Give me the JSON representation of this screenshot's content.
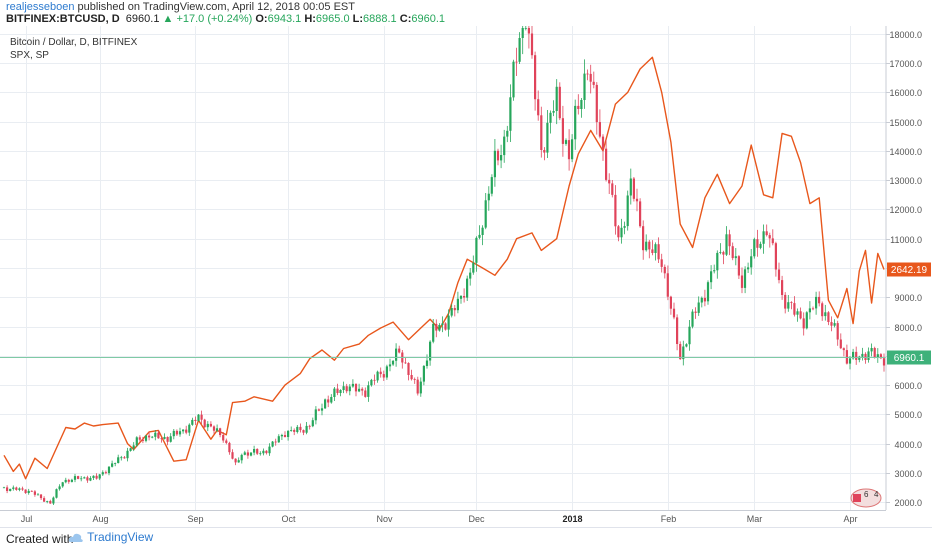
{
  "header": {
    "author": "realjesseboen",
    "published": " published on TradingView.com, April 12, 2018 00:05 EST",
    "symbol": "BITFINEX:BTCUSD, D",
    "last": "6960.1",
    "change": "▲ +17.0 (+0.24%)",
    "o_label": "O:",
    "o_val": "6943.1",
    "h_label": "H:",
    "h_val": "6965.0",
    "l_label": "L:",
    "l_val": "6888.1",
    "c_label": "C:",
    "c_val": "6960.1"
  },
  "legend": {
    "main": "Bitcoin / Dollar, D, BITFINEX",
    "compare": "SPX, SP"
  },
  "footer": {
    "made": "Created with",
    "brand": "TradingView"
  },
  "colors": {
    "up": "#26a65b",
    "down": "#e0435a",
    "spx": "#e8571c",
    "grid": "#e9edf2",
    "axis": "#555555"
  },
  "badge": {
    "left": "6",
    "right": "4"
  },
  "chart_data": {
    "type": "candlestick",
    "ylim": [
      1800,
      18200
    ],
    "y_ticks": [
      2000,
      3000,
      4000,
      5000,
      6000,
      7000,
      8000,
      9000,
      10000,
      11000,
      12000,
      13000,
      14000,
      15000,
      16000,
      17000,
      18000
    ],
    "y_tick_labels": [
      "2000.0",
      "3000.0",
      "4000.0",
      "5000.0",
      "6000.0",
      "7000.0",
      "8000.0",
      "9000.0",
      "10000.0",
      "11000.0",
      "12000.0",
      "13000.0",
      "14000.0",
      "15000.0",
      "16000.0",
      "17000.0",
      "18000.0"
    ],
    "x_range": [
      "2017-07-01",
      "2018-04-12"
    ],
    "x_ticks": [
      {
        "date": "2017-07-08",
        "label": "Jul"
      },
      {
        "date": "2017-08-01",
        "label": "Aug"
      },
      {
        "date": "2017-09-01",
        "label": "Sep"
      },
      {
        "date": "2017-10-01",
        "label": "Oct"
      },
      {
        "date": "2017-11-01",
        "label": "Nov"
      },
      {
        "date": "2017-12-01",
        "label": "Dec"
      },
      {
        "date": "2018-01-01",
        "label": "2018"
      },
      {
        "date": "2018-02-01",
        "label": "Feb"
      },
      {
        "date": "2018-03-01",
        "label": "Mar"
      },
      {
        "date": "2018-04-01",
        "label": "Apr"
      }
    ],
    "grid": true,
    "last_price": 6960.1,
    "last_price_label": "6960.1",
    "compare_last_label": "2642.19",
    "compare_label_level": 9950,
    "series": [
      {
        "name": "Bitcoin / Dollar",
        "type": "candlestick",
        "close_path": [
          [
            "2017-07-01",
            2500
          ],
          [
            "2017-07-10",
            2350
          ],
          [
            "2017-07-16",
            1950
          ],
          [
            "2017-07-20",
            2750
          ],
          [
            "2017-07-31",
            2850
          ],
          [
            "2017-08-05",
            3250
          ],
          [
            "2017-08-13",
            4050
          ],
          [
            "2017-08-17",
            4300
          ],
          [
            "2017-08-23",
            4150
          ],
          [
            "2017-08-31",
            4700
          ],
          [
            "2017-09-02",
            4850
          ],
          [
            "2017-09-06",
            4600
          ],
          [
            "2017-09-10",
            4200
          ],
          [
            "2017-09-14",
            3250
          ],
          [
            "2017-09-16",
            3700
          ],
          [
            "2017-09-22",
            3650
          ],
          [
            "2017-09-30",
            4350
          ],
          [
            "2017-10-08",
            4600
          ],
          [
            "2017-10-13",
            5500
          ],
          [
            "2017-10-20",
            5950
          ],
          [
            "2017-10-26",
            5800
          ],
          [
            "2017-10-31",
            6400
          ],
          [
            "2017-11-06",
            7100
          ],
          [
            "2017-11-12",
            5800
          ],
          [
            "2017-11-17",
            7800
          ],
          [
            "2017-11-25",
            8700
          ],
          [
            "2017-11-29",
            9850
          ],
          [
            "2017-12-07",
            13500
          ],
          [
            "2017-12-10",
            14500
          ],
          [
            "2017-12-17",
            19000
          ],
          [
            "2017-12-22",
            14000
          ],
          [
            "2017-12-27",
            15800
          ],
          [
            "2017-12-31",
            13800
          ],
          [
            "2018-01-06",
            17100
          ],
          [
            "2018-01-10",
            14500
          ],
          [
            "2018-01-16",
            11000
          ],
          [
            "2018-01-20",
            12800
          ],
          [
            "2018-01-24",
            11000
          ],
          [
            "2018-01-30",
            10200
          ],
          [
            "2018-02-05",
            7000
          ],
          [
            "2018-02-10",
            8500
          ],
          [
            "2018-02-20",
            11000
          ],
          [
            "2018-02-25",
            9600
          ],
          [
            "2018-03-05",
            11500
          ],
          [
            "2018-03-10",
            9000
          ],
          [
            "2018-03-17",
            8200
          ],
          [
            "2018-03-22",
            8900
          ],
          [
            "2018-03-27",
            7800
          ],
          [
            "2018-03-31",
            6900
          ],
          [
            "2018-04-04",
            7000
          ],
          [
            "2018-04-08",
            7050
          ],
          [
            "2018-04-12",
            6960
          ]
        ]
      },
      {
        "name": "SPX",
        "type": "line",
        "path": [
          [
            "2017-07-01",
            3600
          ],
          [
            "2017-07-04",
            3050
          ],
          [
            "2017-07-06",
            3300
          ],
          [
            "2017-07-08",
            2800
          ],
          [
            "2017-07-11",
            3500
          ],
          [
            "2017-07-15",
            3150
          ],
          [
            "2017-07-21",
            4550
          ],
          [
            "2017-07-24",
            4500
          ],
          [
            "2017-07-27",
            4700
          ],
          [
            "2017-07-30",
            4600
          ],
          [
            "2017-08-02",
            4650
          ],
          [
            "2017-08-07",
            4700
          ],
          [
            "2017-08-10",
            4000
          ],
          [
            "2017-08-12",
            3800
          ],
          [
            "2017-08-17",
            4400
          ],
          [
            "2017-08-20",
            4450
          ],
          [
            "2017-08-25",
            3400
          ],
          [
            "2017-08-29",
            3450
          ],
          [
            "2017-09-02",
            4800
          ],
          [
            "2017-09-06",
            4150
          ],
          [
            "2017-09-08",
            4450
          ],
          [
            "2017-09-11",
            4300
          ],
          [
            "2017-09-13",
            5400
          ],
          [
            "2017-09-17",
            5450
          ],
          [
            "2017-09-20",
            5600
          ],
          [
            "2017-09-26",
            5450
          ],
          [
            "2017-09-30",
            6000
          ],
          [
            "2017-10-05",
            6400
          ],
          [
            "2017-10-08",
            6900
          ],
          [
            "2017-10-12",
            7200
          ],
          [
            "2017-10-16",
            6850
          ],
          [
            "2017-10-19",
            7250
          ],
          [
            "2017-10-24",
            7400
          ],
          [
            "2017-10-27",
            7700
          ],
          [
            "2017-10-31",
            7950
          ],
          [
            "2017-11-04",
            8150
          ],
          [
            "2017-11-09",
            7550
          ],
          [
            "2017-11-13",
            7950
          ],
          [
            "2017-11-16",
            8250
          ],
          [
            "2017-11-19",
            7900
          ],
          [
            "2017-11-22",
            8450
          ],
          [
            "2017-11-25",
            9500
          ],
          [
            "2017-11-28",
            10300
          ],
          [
            "2017-12-03",
            10000
          ],
          [
            "2017-12-07",
            9750
          ],
          [
            "2017-12-11",
            10300
          ],
          [
            "2017-12-14",
            11000
          ],
          [
            "2017-12-19",
            11200
          ],
          [
            "2017-12-22",
            10600
          ],
          [
            "2017-12-27",
            11000
          ],
          [
            "2017-12-31",
            12800
          ],
          [
            "2018-01-03",
            13900
          ],
          [
            "2018-01-07",
            14700
          ],
          [
            "2018-01-11",
            14000
          ],
          [
            "2018-01-15",
            15600
          ],
          [
            "2018-01-19",
            16000
          ],
          [
            "2018-01-23",
            16800
          ],
          [
            "2018-01-27",
            17200
          ],
          [
            "2018-01-30",
            16000
          ],
          [
            "2018-02-02",
            14300
          ],
          [
            "2018-02-05",
            11500
          ],
          [
            "2018-02-09",
            10700
          ],
          [
            "2018-02-13",
            12400
          ],
          [
            "2018-02-17",
            13200
          ],
          [
            "2018-02-21",
            12200
          ],
          [
            "2018-02-25",
            12800
          ],
          [
            "2018-02-28",
            14200
          ],
          [
            "2018-03-04",
            12500
          ],
          [
            "2018-03-07",
            12400
          ],
          [
            "2018-03-10",
            14600
          ],
          [
            "2018-03-13",
            14500
          ],
          [
            "2018-03-16",
            13600
          ],
          [
            "2018-03-19",
            12200
          ],
          [
            "2018-03-22",
            12400
          ],
          [
            "2018-03-25",
            8900
          ],
          [
            "2018-03-28",
            8300
          ],
          [
            "2018-03-31",
            9300
          ],
          [
            "2018-04-02",
            8100
          ],
          [
            "2018-04-04",
            9900
          ],
          [
            "2018-04-06",
            10600
          ],
          [
            "2018-04-08",
            8800
          ],
          [
            "2018-04-10",
            10500
          ],
          [
            "2018-04-12",
            9950
          ]
        ]
      }
    ]
  }
}
